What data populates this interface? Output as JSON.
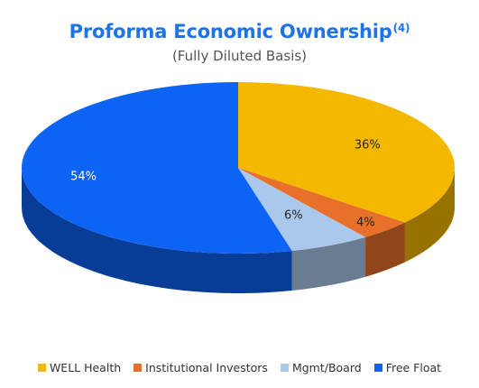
{
  "chart_data": {
    "type": "pie",
    "title": "Proforma Economic Ownership",
    "title_superscript": "(4)",
    "subtitle": "(Fully Diluted Basis)",
    "slices": [
      {
        "name": "WELL Health",
        "value": 36,
        "label": "36%",
        "color": "#F5B800"
      },
      {
        "name": "Institutional Investors",
        "value": 4,
        "label": "4%",
        "color": "#E8702A"
      },
      {
        "name": "Mgmt/Board",
        "value": 6,
        "label": "6%",
        "color": "#A9C8EC"
      },
      {
        "name": "Free Float",
        "value": 54,
        "label": "54%",
        "color": "#0D63F3"
      }
    ],
    "style": "3d",
    "legend_position": "bottom"
  }
}
